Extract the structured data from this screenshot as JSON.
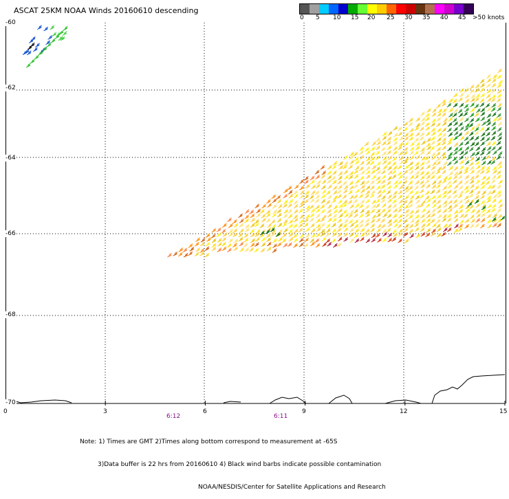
{
  "title": "ASCAT 25KM NOAA Winds 20160610 descending",
  "colors": {
    "swatches": [
      "#555555",
      "#a0a0a0",
      "#00ccff",
      "#0066ff",
      "#0000cc",
      "#00aa00",
      "#66ff33",
      "#ffff00",
      "#ffcc00",
      "#ff6600",
      "#ff0000",
      "#cc0000",
      "#663311",
      "#b07050",
      "#ff00ff",
      "#cc00cc",
      "#7700cc",
      "#330055"
    ]
  },
  "legend_labels": [
    "0",
    "5",
    "10",
    "15",
    "20",
    "25",
    "30",
    "35",
    "40",
    "45",
    ">50 knots"
  ],
  "lat_labels": [
    "-60",
    "-62",
    "-64",
    "-66",
    "-68",
    "-70"
  ],
  "lon_labels": [
    "0",
    "3",
    "6",
    "9",
    "12",
    "15"
  ],
  "time_labels": [
    "6:12",
    "6:11"
  ],
  "notes": [
    "Note: 1) Times are GMT 2)Times along bottom correspond to measurement at -65S",
    "3)Data buffer is 22 hrs from 20160610 4) Black wind barbs indicate possible contamination",
    "NOAA/NESDIS/Center for Satellite Applications and Research"
  ]
}
